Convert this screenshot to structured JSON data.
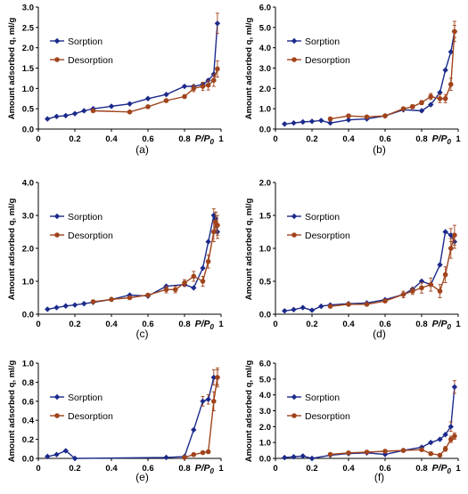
{
  "figure": {
    "series_colors": {
      "sorption": "#1c2a8c",
      "desorption": "#a0441c",
      "error_bar": "#a0441c"
    }
  },
  "chart_data": [
    {
      "panel": "(a)",
      "type": "line",
      "ylabel": "Amount adsorbed q, ml/g",
      "xlabel": "P/P0",
      "xlim": [
        0,
        1
      ],
      "ylim": [
        0,
        3
      ],
      "xticks": [
        "0",
        "0.2",
        "0.4",
        "0.6",
        "0.8",
        "1"
      ],
      "yticks": [
        "0.0",
        "0.5",
        "1.0",
        "1.5",
        "2.0",
        "2.5",
        "3.0"
      ],
      "legend": "top-left",
      "series": [
        {
          "name": "Sorption",
          "marker": "diamond",
          "x": [
            0.05,
            0.1,
            0.15,
            0.2,
            0.25,
            0.3,
            0.4,
            0.5,
            0.6,
            0.7,
            0.8,
            0.85,
            0.9,
            0.93,
            0.96,
            0.98
          ],
          "y": [
            0.25,
            0.31,
            0.33,
            0.38,
            0.45,
            0.5,
            0.56,
            0.62,
            0.75,
            0.85,
            1.05,
            1.05,
            1.1,
            1.2,
            1.35,
            2.6
          ],
          "err": [
            0,
            0,
            0,
            0,
            0,
            0,
            0,
            0,
            0,
            0,
            0,
            0,
            0,
            0,
            0,
            0.25
          ]
        },
        {
          "name": "Desorption",
          "marker": "circle",
          "x": [
            0.3,
            0.5,
            0.6,
            0.7,
            0.8,
            0.85,
            0.9,
            0.93,
            0.96,
            0.98
          ],
          "y": [
            0.45,
            0.42,
            0.55,
            0.7,
            0.8,
            1.0,
            1.05,
            1.08,
            1.2,
            1.48
          ],
          "err": [
            0,
            0,
            0,
            0,
            0,
            0.08,
            0.1,
            0.12,
            0.15,
            0.2
          ]
        }
      ]
    },
    {
      "panel": "(b)",
      "type": "line",
      "ylabel": "Amount adsorbed q, ml/g",
      "xlabel": "P/P0",
      "xlim": [
        0,
        1
      ],
      "ylim": [
        0,
        6
      ],
      "xticks": [
        "0",
        "0.2",
        "0.4",
        "0.6",
        "0.8",
        "1"
      ],
      "yticks": [
        "0.0",
        "1.0",
        "2.0",
        "3.0",
        "4.0",
        "5.0",
        "6.0"
      ],
      "legend": "top-left",
      "series": [
        {
          "name": "Sorption",
          "marker": "diamond",
          "x": [
            0.05,
            0.1,
            0.15,
            0.2,
            0.25,
            0.3,
            0.4,
            0.5,
            0.6,
            0.7,
            0.8,
            0.85,
            0.9,
            0.93,
            0.96,
            0.98
          ],
          "y": [
            0.25,
            0.3,
            0.35,
            0.38,
            0.42,
            0.3,
            0.45,
            0.5,
            0.65,
            0.95,
            0.9,
            1.2,
            1.8,
            2.9,
            3.8,
            4.8
          ],
          "err": [
            0,
            0,
            0,
            0,
            0,
            0,
            0,
            0,
            0,
            0,
            0,
            0,
            0,
            0,
            0,
            0.3
          ]
        },
        {
          "name": "Desorption",
          "marker": "circle",
          "x": [
            0.3,
            0.4,
            0.5,
            0.6,
            0.7,
            0.75,
            0.8,
            0.85,
            0.9,
            0.93,
            0.96,
            0.98
          ],
          "y": [
            0.5,
            0.65,
            0.6,
            0.65,
            1.0,
            1.1,
            1.3,
            1.6,
            1.5,
            1.5,
            2.2,
            4.8
          ],
          "err": [
            0,
            0,
            0,
            0,
            0,
            0.1,
            0.1,
            0.15,
            0.2,
            0.2,
            0.3,
            0.5
          ]
        }
      ]
    },
    {
      "panel": "(c)",
      "type": "line",
      "ylabel": "Amount adsorbed q, ml/g",
      "xlabel": "P/P0",
      "xlim": [
        0,
        1
      ],
      "ylim": [
        0,
        4
      ],
      "xticks": [
        "0",
        "0.2",
        "0.4",
        "0.6",
        "0.8",
        "1"
      ],
      "yticks": [
        "0.0",
        "1.0",
        "2.0",
        "3.0",
        "4.0"
      ],
      "legend": "top-left",
      "series": [
        {
          "name": "Sorption",
          "marker": "diamond",
          "x": [
            0.05,
            0.1,
            0.15,
            0.2,
            0.25,
            0.3,
            0.4,
            0.5,
            0.6,
            0.7,
            0.8,
            0.85,
            0.9,
            0.93,
            0.96,
            0.97,
            0.98
          ],
          "y": [
            0.15,
            0.2,
            0.25,
            0.28,
            0.32,
            0.36,
            0.45,
            0.58,
            0.55,
            0.85,
            0.9,
            0.8,
            1.4,
            2.2,
            3.0,
            2.9,
            2.5
          ],
          "err": [
            0,
            0,
            0,
            0,
            0,
            0,
            0,
            0,
            0,
            0,
            0,
            0,
            0,
            0,
            0.2,
            0.2,
            0.2
          ]
        },
        {
          "name": "Desorption",
          "marker": "circle",
          "x": [
            0.3,
            0.4,
            0.5,
            0.6,
            0.7,
            0.75,
            0.8,
            0.85,
            0.9,
            0.93,
            0.96,
            0.97,
            0.98
          ],
          "y": [
            0.38,
            0.45,
            0.5,
            0.58,
            0.75,
            0.75,
            0.95,
            1.15,
            1.0,
            1.6,
            2.5,
            2.8,
            2.7
          ],
          "err": [
            0,
            0,
            0,
            0,
            0.1,
            0.1,
            0.1,
            0.15,
            0.15,
            0.2,
            0.3,
            0.3,
            0.3
          ]
        }
      ]
    },
    {
      "panel": "(d)",
      "type": "line",
      "ylabel": "Amount adsorbed q, ml/g",
      "xlabel": "P/P0",
      "xlim": [
        0,
        1
      ],
      "ylim": [
        0,
        2
      ],
      "xticks": [
        "0",
        "0.2",
        "0.4",
        "0.6",
        "0.8",
        "1"
      ],
      "yticks": [
        "0.0",
        "0.5",
        "1.0",
        "1.5",
        "2.0"
      ],
      "legend": "top-left",
      "series": [
        {
          "name": "Sorption",
          "marker": "diamond",
          "x": [
            0.05,
            0.1,
            0.15,
            0.2,
            0.25,
            0.3,
            0.4,
            0.5,
            0.6,
            0.7,
            0.75,
            0.8,
            0.85,
            0.9,
            0.93,
            0.96,
            0.98
          ],
          "y": [
            0.05,
            0.07,
            0.1,
            0.06,
            0.12,
            0.14,
            0.16,
            0.17,
            0.22,
            0.3,
            0.38,
            0.5,
            0.45,
            0.75,
            1.25,
            1.2,
            1.1
          ],
          "err": [
            0,
            0,
            0,
            0,
            0,
            0,
            0,
            0,
            0,
            0,
            0,
            0,
            0,
            0,
            0,
            0.1,
            0.1
          ]
        },
        {
          "name": "Desorption",
          "marker": "circle",
          "x": [
            0.3,
            0.4,
            0.5,
            0.6,
            0.7,
            0.75,
            0.8,
            0.85,
            0.9,
            0.93,
            0.96,
            0.98
          ],
          "y": [
            0.12,
            0.15,
            0.15,
            0.2,
            0.3,
            0.35,
            0.4,
            0.45,
            0.35,
            0.6,
            1.0,
            1.2
          ],
          "err": [
            0,
            0,
            0,
            0,
            0.05,
            0.05,
            0.08,
            0.1,
            0.1,
            0.12,
            0.15,
            0.15
          ]
        }
      ]
    },
    {
      "panel": "(e)",
      "type": "line",
      "ylabel": "Amount adsorbed q, ml/g",
      "xlabel": "P/P0",
      "xlim": [
        0,
        1
      ],
      "ylim": [
        0,
        1
      ],
      "xticks": [
        "0",
        "0.2",
        "0.4",
        "0.6",
        "0.8",
        "1"
      ],
      "yticks": [
        "0.0",
        "0.2",
        "0.4",
        "0.6",
        "0.8",
        "1.0"
      ],
      "legend": "top-left",
      "series": [
        {
          "name": "Sorption",
          "marker": "diamond",
          "x": [
            0.05,
            0.1,
            0.15,
            0.2,
            0.7,
            0.8,
            0.85,
            0.9,
            0.93,
            0.96,
            0.98
          ],
          "y": [
            0.02,
            0.04,
            0.08,
            0.0,
            0.01,
            0.02,
            0.3,
            0.6,
            0.62,
            0.85,
            0.85
          ],
          "err": [
            0,
            0,
            0,
            0,
            0,
            0,
            0,
            0.05,
            0.05,
            0.08,
            0.08
          ]
        },
        {
          "name": "Desorption",
          "marker": "circle",
          "x": [
            0.8,
            0.85,
            0.9,
            0.93,
            0.96,
            0.98
          ],
          "y": [
            0.01,
            0.04,
            0.06,
            0.07,
            0.6,
            0.85
          ],
          "err": [
            0,
            0,
            0,
            0,
            0.1,
            0.1
          ]
        }
      ]
    },
    {
      "panel": "(f)",
      "type": "line",
      "ylabel": "Amount adsorbed q, ml/g",
      "xlabel": "P/P0",
      "xlim": [
        0,
        1
      ],
      "ylim": [
        0,
        6
      ],
      "xticks": [
        "0",
        "0.2",
        "0.4",
        "0.6",
        "0.8",
        "1"
      ],
      "yticks": [
        "0.0",
        "1.0",
        "2.0",
        "3.0",
        "4.0",
        "5.0",
        "6.0"
      ],
      "legend": "top-left",
      "series": [
        {
          "name": "Sorption",
          "marker": "diamond",
          "x": [
            0.05,
            0.1,
            0.15,
            0.2,
            0.3,
            0.4,
            0.5,
            0.6,
            0.7,
            0.8,
            0.85,
            0.9,
            0.93,
            0.96,
            0.98
          ],
          "y": [
            0.05,
            0.1,
            0.15,
            0.0,
            0.2,
            0.3,
            0.35,
            0.25,
            0.5,
            0.7,
            1.0,
            1.2,
            1.5,
            2.0,
            4.5
          ],
          "err": [
            0,
            0,
            0,
            0,
            0,
            0,
            0,
            0,
            0,
            0,
            0,
            0,
            0,
            0.3,
            0.4
          ]
        },
        {
          "name": "Desorption",
          "marker": "circle",
          "x": [
            0.3,
            0.4,
            0.5,
            0.6,
            0.7,
            0.8,
            0.85,
            0.9,
            0.93,
            0.96,
            0.98
          ],
          "y": [
            0.25,
            0.35,
            0.4,
            0.45,
            0.5,
            0.55,
            0.3,
            0.2,
            0.6,
            1.2,
            1.4
          ],
          "err": [
            0,
            0,
            0,
            0,
            0,
            0.1,
            0.1,
            0.1,
            0.15,
            0.2,
            0.2
          ]
        }
      ]
    }
  ]
}
